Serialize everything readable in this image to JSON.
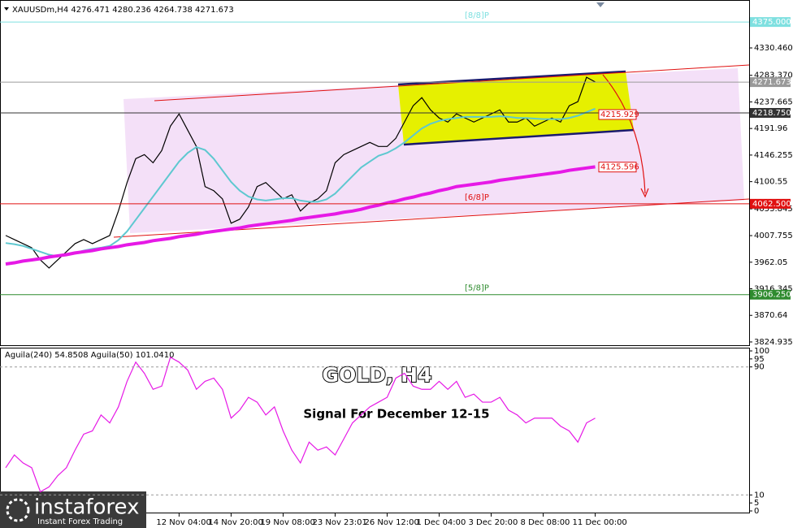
{
  "chart_data": [
    {
      "type": "line",
      "title": "XAUUSDm,H4  4276.471 4280.236 4264.738 4271.673",
      "categories": [
        null,
        null,
        null,
        null,
        null,
        null,
        null,
        null,
        null,
        null,
        null,
        null,
        null,
        null,
        null,
        null,
        null,
        null,
        null,
        null,
        "12 Nov 04:00",
        null,
        null,
        null,
        null,
        null,
        "14 Nov 20:00",
        null,
        null,
        null,
        null,
        null,
        "19 Nov 08:00",
        null,
        null,
        null,
        null,
        null,
        "23 Nov 23:01",
        null,
        null,
        null,
        null,
        null,
        "26 Nov 12:00",
        null,
        null,
        null,
        null,
        null,
        "1 Dec 04:00",
        null,
        null,
        null,
        null,
        null,
        "3 Dec 20:00",
        null,
        null,
        null,
        null,
        null,
        "8 Dec 08:00",
        null,
        null,
        null,
        null,
        null,
        "11 Dec 00:00"
      ],
      "series": [
        {
          "color": "#000000",
          "values": [
            4008,
            4001,
            3994,
            3987,
            3966,
            3952,
            3966,
            3980,
            3994,
            4001,
            3994,
            4001,
            4008,
            4050,
            4099,
            4140,
            4147,
            4133,
            4154,
            4196,
            4217,
            4189,
            4161,
            4092,
            4085,
            4071,
            4029,
            4036,
            4057,
            4092,
            4099,
            4085,
            4071,
            4078,
            4050,
            4064,
            4071,
            4085,
            4133,
            4147,
            4154,
            4161,
            4168,
            4161,
            4161,
            4175,
            4203,
            4231,
            4245,
            4224,
            4210,
            4203,
            4217,
            4210,
            4203,
            4210,
            4217,
            4224,
            4203,
            4203,
            4210,
            4196,
            4203,
            4210,
            4203,
            4231,
            4238,
            4280,
            4272
          ]
        },
        {
          "color": "#5ec8d0",
          "values": [
            3995,
            3993,
            3990,
            3985,
            3980,
            3975,
            3972,
            3975,
            3978,
            3982,
            3985,
            3987,
            3990,
            4000,
            4015,
            4035,
            4055,
            4075,
            4095,
            4115,
            4135,
            4150,
            4160,
            4155,
            4140,
            4120,
            4100,
            4085,
            4075,
            4070,
            4068,
            4070,
            4072,
            4072,
            4068,
            4066,
            4066,
            4070,
            4080,
            4095,
            4110,
            4125,
            4135,
            4145,
            4150,
            4158,
            4168,
            4180,
            4192,
            4200,
            4205,
            4208,
            4210,
            4212,
            4212,
            4212,
            4212,
            4213,
            4212,
            4210,
            4210,
            4209,
            4208,
            4208,
            4208,
            4210,
            4214,
            4220,
            4226
          ]
        },
        {
          "color": "#e619e6",
          "values": [
            3959,
            3961,
            3964,
            3966,
            3968,
            3971,
            3973,
            3975,
            3978,
            3980,
            3982,
            3985,
            3987,
            3989,
            3992,
            3994,
            3996,
            3999,
            4001,
            4003,
            4006,
            4008,
            4010,
            4013,
            4015,
            4017,
            4019,
            4021,
            4024,
            4026,
            4028,
            4030,
            4032,
            4034,
            4037,
            4039,
            4041,
            4043,
            4045,
            4048,
            4050,
            4053,
            4057,
            4060,
            4064,
            4067,
            4071,
            4074,
            4078,
            4081,
            4085,
            4088,
            4092,
            4094,
            4096,
            4098,
            4100,
            4103,
            4105,
            4107,
            4109,
            4111,
            4113,
            4115,
            4117,
            4120,
            4122,
            4124,
            4126
          ]
        }
      ],
      "ylim": [
        3819.3,
        4393.3
      ],
      "yticks": [
        {
          "value": 4330.46,
          "label": "4330.460"
        },
        {
          "value": 4283.37,
          "label": "4283.370"
        },
        4237.665,
        4191.96,
        4146.255,
        4100.55,
        4053.845,
        4007.755,
        3962.05,
        3916.345,
        3870.64,
        3824.935
      ],
      "levels": [
        {
          "value": 4375,
          "label": "4375.000",
          "color": "#7fe0e0",
          "tag": "[8/8]P"
        },
        {
          "value": 4271.673,
          "color": "#9a9a9a"
        },
        {
          "value": 4218.75,
          "label": "4218.750",
          "color": "#333333"
        },
        {
          "value": 4062.5,
          "label": "4062.500",
          "color": "#e01010",
          "tag": "[6/8]P"
        },
        {
          "value": 3906.25,
          "label": "3906.250",
          "color": "#2e8b2e",
          "tag": "[5/8]P"
        }
      ],
      "markers": [
        {
          "value": 4215.929,
          "color": "#e01010"
        },
        {
          "value": 4125.596,
          "color": "#e01010"
        }
      ]
    },
    {
      "type": "line",
      "title": "Aguila(240) 54.8508  Aguila(50) 101.0410",
      "annotations": [
        "GOLD, H4",
        "Signal For December 12-15"
      ],
      "series": [
        {
          "color": "#e619e6",
          "values": [
            27,
            35,
            30,
            27,
            12,
            15,
            22,
            27,
            38,
            48,
            50,
            60,
            55,
            65,
            81,
            93,
            86,
            76,
            78,
            96,
            93,
            88,
            76,
            81,
            83,
            76,
            58,
            63,
            71,
            68,
            60,
            65,
            50,
            38,
            30,
            43,
            38,
            40,
            35,
            45,
            55,
            60,
            65,
            68,
            71,
            83,
            86,
            78,
            76,
            76,
            81,
            76,
            81,
            71,
            73,
            68,
            68,
            71,
            63,
            60,
            55,
            58,
            58,
            58,
            53,
            50,
            43,
            55,
            58
          ]
        }
      ],
      "ylim": [
        0,
        100
      ],
      "yticks": [
        100,
        95,
        90,
        10,
        5,
        0
      ]
    }
  ],
  "logo": {
    "name": "instaforex",
    "tagline": "Instant Forex Trading"
  }
}
